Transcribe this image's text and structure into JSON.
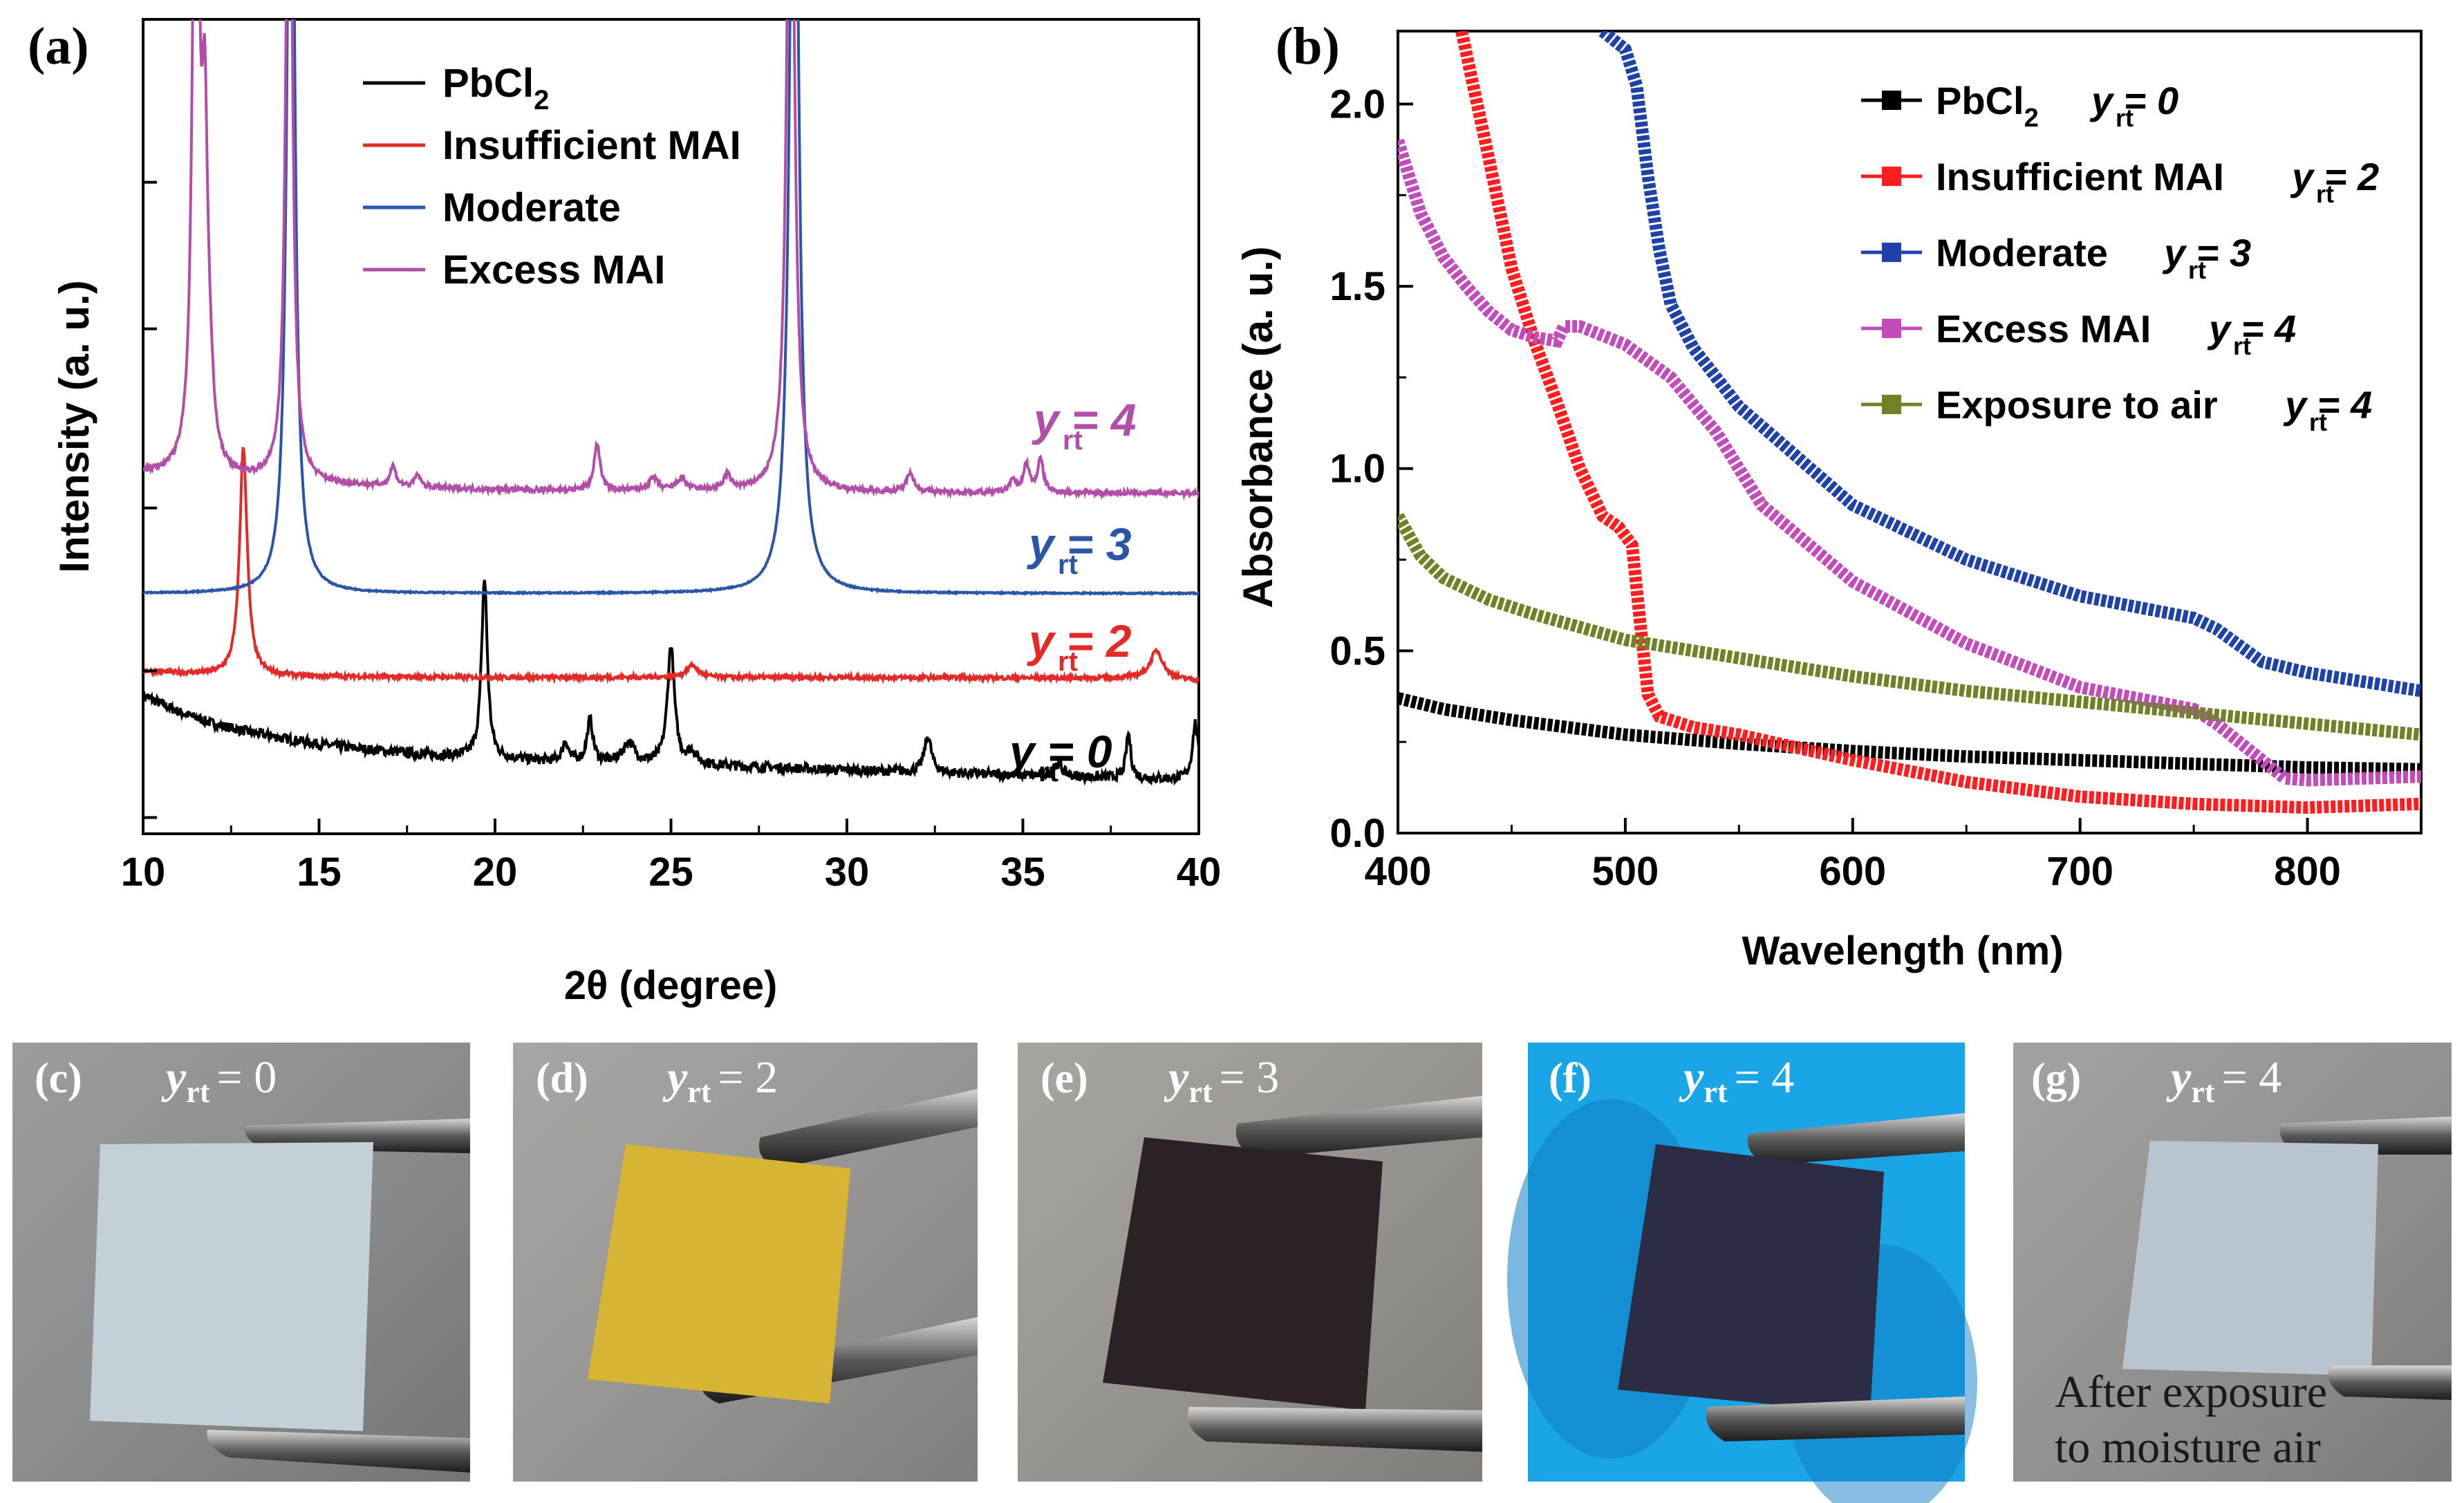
{
  "chart_data": [
    {
      "type": "line",
      "panel_label": "(a)",
      "xlabel": "2θ (degree)",
      "ylabel": "Intensity (a. u.)",
      "xlim": [
        10,
        40
      ],
      "xticks": [
        "10",
        "15",
        "20",
        "25",
        "30",
        "35",
        "40"
      ],
      "xtick_values": [
        10,
        15,
        20,
        25,
        30,
        35,
        40
      ],
      "ylim": [
        0,
        100
      ],
      "legend_position": "top-center",
      "legend": [
        "PbCl",
        "Insufficient MAI",
        "Moderate",
        "Excess MAI"
      ],
      "legend_subscript": "2",
      "series": [
        {
          "name": "PbCl2",
          "color": "#000000",
          "annotation": "y = 0",
          "annotation_sub": "rt",
          "baseline_points": [
            [
              10,
              17
            ],
            [
              11,
              15
            ],
            [
              12,
              13.5
            ],
            [
              13,
              12.5
            ],
            [
              14,
              11.7
            ],
            [
              15,
              11
            ],
            [
              16,
              10.5
            ],
            [
              18,
              9.7
            ],
            [
              20,
              9.2
            ],
            [
              22,
              8.8
            ],
            [
              24,
              8.6
            ],
            [
              26,
              8.4
            ],
            [
              30,
              7.8
            ],
            [
              34,
              7.3
            ],
            [
              38,
              6.8
            ],
            [
              40,
              6.6
            ]
          ],
          "noise": 0.6,
          "peaks": [
            [
              19.7,
              22,
              0.1
            ],
            [
              22.0,
              2.5,
              0.1
            ],
            [
              22.7,
              5.2,
              0.1
            ],
            [
              23.8,
              2.5,
              0.2
            ],
            [
              25.0,
              14.5,
              0.12
            ],
            [
              25.6,
              1.5,
              0.15
            ],
            [
              32.3,
              4.5,
              0.12
            ],
            [
              36.0,
              1.5,
              0.15
            ],
            [
              38.0,
              5.5,
              0.08
            ],
            [
              39.9,
              7,
              0.1
            ]
          ]
        },
        {
          "name": "Insufficient MAI",
          "color": "#e32a27",
          "annotation": "y = 2",
          "annotation_sub": "rt",
          "baseline_points": [
            [
              10,
              20
            ],
            [
              11,
              19.7
            ],
            [
              12,
              19.5
            ],
            [
              15,
              19.3
            ],
            [
              20,
              19.2
            ],
            [
              30,
              19.2
            ],
            [
              38,
              19.1
            ],
            [
              40,
              18.8
            ]
          ],
          "noise": 0.25,
          "peaks": [
            [
              12.85,
              28,
              0.13
            ],
            [
              25.6,
              1.5,
              0.2
            ],
            [
              38.8,
              3.5,
              0.22
            ]
          ]
        },
        {
          "name": "Moderate",
          "color": "#2a56a8",
          "annotation": "y = 3",
          "annotation_sub": "rt",
          "baseline_points": [
            [
              10,
              29.5
            ],
            [
              40,
              29.5
            ]
          ],
          "noise": 0.08,
          "peaks": [
            [
              14.2,
              120,
              0.12
            ],
            [
              28.5,
              120,
              0.14
            ]
          ]
        },
        {
          "name": "Excess MAI",
          "color": "#b24ea8",
          "annotation": "y = 4",
          "annotation_sub": "rt",
          "baseline_points": [
            [
              10,
              44.2
            ],
            [
              12,
              43.5
            ],
            [
              15,
              42.8
            ],
            [
              20,
              42.2
            ],
            [
              30,
              41.9
            ],
            [
              40,
              41.8
            ]
          ],
          "noise": 0.3,
          "peaks": [
            [
              11.5,
              100,
              0.1
            ],
            [
              11.75,
              38,
              0.1
            ],
            [
              11.9,
              6,
              0.12
            ],
            [
              14.15,
              100,
              0.1
            ],
            [
              17.1,
              2.5,
              0.1
            ],
            [
              17.8,
              1.5,
              0.1
            ],
            [
              22.9,
              5.8,
              0.1
            ],
            [
              24.5,
              1.5,
              0.15
            ],
            [
              25.3,
              1.5,
              0.15
            ],
            [
              26.6,
              1.8,
              0.12
            ],
            [
              28.4,
              100,
              0.12
            ],
            [
              31.8,
              2.5,
              0.12
            ],
            [
              34.7,
              1.5,
              0.1
            ],
            [
              35.1,
              3.5,
              0.1
            ],
            [
              35.5,
              4,
              0.1
            ]
          ]
        }
      ]
    },
    {
      "type": "line",
      "panel_label": "(b)",
      "xlabel": "Wavelength (nm)",
      "ylabel": "Absorbance (a. u.)",
      "xlim": [
        400,
        850
      ],
      "ylim": [
        0.0,
        2.2
      ],
      "xticks": [
        "400",
        "500",
        "600",
        "700",
        "800"
      ],
      "xtick_values": [
        400,
        500,
        600,
        700,
        800
      ],
      "yticks": [
        "0.0",
        "0.5",
        "1.0",
        "1.5",
        "2.0"
      ],
      "ytick_values": [
        0.0,
        0.5,
        1.0,
        1.5,
        2.0
      ],
      "legend_position": "top-right",
      "series": [
        {
          "name": "PbCl2",
          "legend_label": "PbCl",
          "legend_sub": "2",
          "legend_y": "y = 0",
          "legend_y_sub": "rt",
          "color": "#000000",
          "points": [
            [
              400,
              0.37
            ],
            [
              420,
              0.34
            ],
            [
              450,
              0.31
            ],
            [
              500,
              0.27
            ],
            [
              550,
              0.245
            ],
            [
              600,
              0.225
            ],
            [
              650,
              0.21
            ],
            [
              700,
              0.2
            ],
            [
              750,
              0.19
            ],
            [
              800,
              0.18
            ],
            [
              850,
              0.175
            ]
          ]
        },
        {
          "name": "Insufficient MAI",
          "legend_label": "Insufficient MAI",
          "legend_y": "y = 2",
          "legend_y_sub": "rt",
          "color": "#ff1d1d",
          "points": [
            [
              428,
              2.2
            ],
            [
              440,
              1.85
            ],
            [
              450,
              1.55
            ],
            [
              460,
              1.35
            ],
            [
              470,
              1.18
            ],
            [
              480,
              1.0
            ],
            [
              490,
              0.87
            ],
            [
              497,
              0.84
            ],
            [
              503,
              0.79
            ],
            [
              507,
              0.55
            ],
            [
              510,
              0.38
            ],
            [
              515,
              0.32
            ],
            [
              530,
              0.29
            ],
            [
              550,
              0.27
            ],
            [
              600,
              0.2
            ],
            [
              650,
              0.14
            ],
            [
              700,
              0.1
            ],
            [
              750,
              0.08
            ],
            [
              800,
              0.07
            ],
            [
              850,
              0.08
            ]
          ]
        },
        {
          "name": "Moderate",
          "legend_label": "Moderate",
          "legend_y": "y = 3",
          "legend_y_sub": "rt",
          "color": "#1f42a8",
          "points": [
            [
              490,
              2.2
            ],
            [
              500,
              2.15
            ],
            [
              505,
              2.05
            ],
            [
              510,
              1.8
            ],
            [
              515,
              1.6
            ],
            [
              520,
              1.45
            ],
            [
              530,
              1.33
            ],
            [
              550,
              1.17
            ],
            [
              600,
              0.9
            ],
            [
              650,
              0.75
            ],
            [
              700,
              0.65
            ],
            [
              750,
              0.59
            ],
            [
              760,
              0.56
            ],
            [
              780,
              0.47
            ],
            [
              800,
              0.44
            ],
            [
              850,
              0.39
            ]
          ]
        },
        {
          "name": "Excess MAI",
          "legend_label": "Excess MAI",
          "legend_y": "y = 4",
          "legend_y_sub": "rt",
          "color": "#c14cba",
          "points": [
            [
              400,
              1.9
            ],
            [
              410,
              1.7
            ],
            [
              420,
              1.58
            ],
            [
              430,
              1.5
            ],
            [
              440,
              1.43
            ],
            [
              450,
              1.38
            ],
            [
              460,
              1.36
            ],
            [
              470,
              1.35
            ],
            [
              473,
              1.39
            ],
            [
              480,
              1.39
            ],
            [
              500,
              1.34
            ],
            [
              520,
              1.25
            ],
            [
              540,
              1.1
            ],
            [
              560,
              0.9
            ],
            [
              600,
              0.69
            ],
            [
              650,
              0.52
            ],
            [
              700,
              0.4
            ],
            [
              750,
              0.34
            ],
            [
              760,
              0.3
            ],
            [
              780,
              0.2
            ],
            [
              790,
              0.15
            ],
            [
              800,
              0.145
            ],
            [
              850,
              0.155
            ]
          ]
        },
        {
          "name": "Exposure to air",
          "legend_label": "Exposure to air",
          "legend_y": "y = 4",
          "legend_y_sub": "rt",
          "color": "#6d8325",
          "points": [
            [
              400,
              0.87
            ],
            [
              410,
              0.76
            ],
            [
              420,
              0.7
            ],
            [
              440,
              0.64
            ],
            [
              460,
              0.6
            ],
            [
              500,
              0.53
            ],
            [
              550,
              0.48
            ],
            [
              600,
              0.43
            ],
            [
              650,
              0.39
            ],
            [
              700,
              0.36
            ],
            [
              750,
              0.33
            ],
            [
              800,
              0.3
            ],
            [
              850,
              0.27
            ]
          ]
        }
      ]
    }
  ],
  "photos": [
    {
      "label": "(c)",
      "y_text": "y",
      "y_sub": "rt",
      "y_value": "= 0",
      "bg": "#8d8e8f",
      "sample": "#c4d0d8"
    },
    {
      "label": "(d)",
      "y_text": "y",
      "y_sub": "rt",
      "y_value": "= 2",
      "bg": "#9b9a97",
      "sample": "#d8b434"
    },
    {
      "label": "(e)",
      "y_text": "y",
      "y_sub": "rt",
      "y_value": "= 3",
      "bg": "#9c9893",
      "sample": "#2b2228"
    },
    {
      "label": "(f)",
      "y_text": "y",
      "y_sub": "rt",
      "y_value": "= 4",
      "bg": "#1aa5e6",
      "sample": "#2c2c44"
    },
    {
      "label": "(g)",
      "y_text": "y",
      "y_sub": "rt",
      "y_value": "= 4",
      "bg": "#969593",
      "sample": "#b8c4ce",
      "caption_line1": "After exposure",
      "caption_line2": "to moisture air"
    }
  ]
}
